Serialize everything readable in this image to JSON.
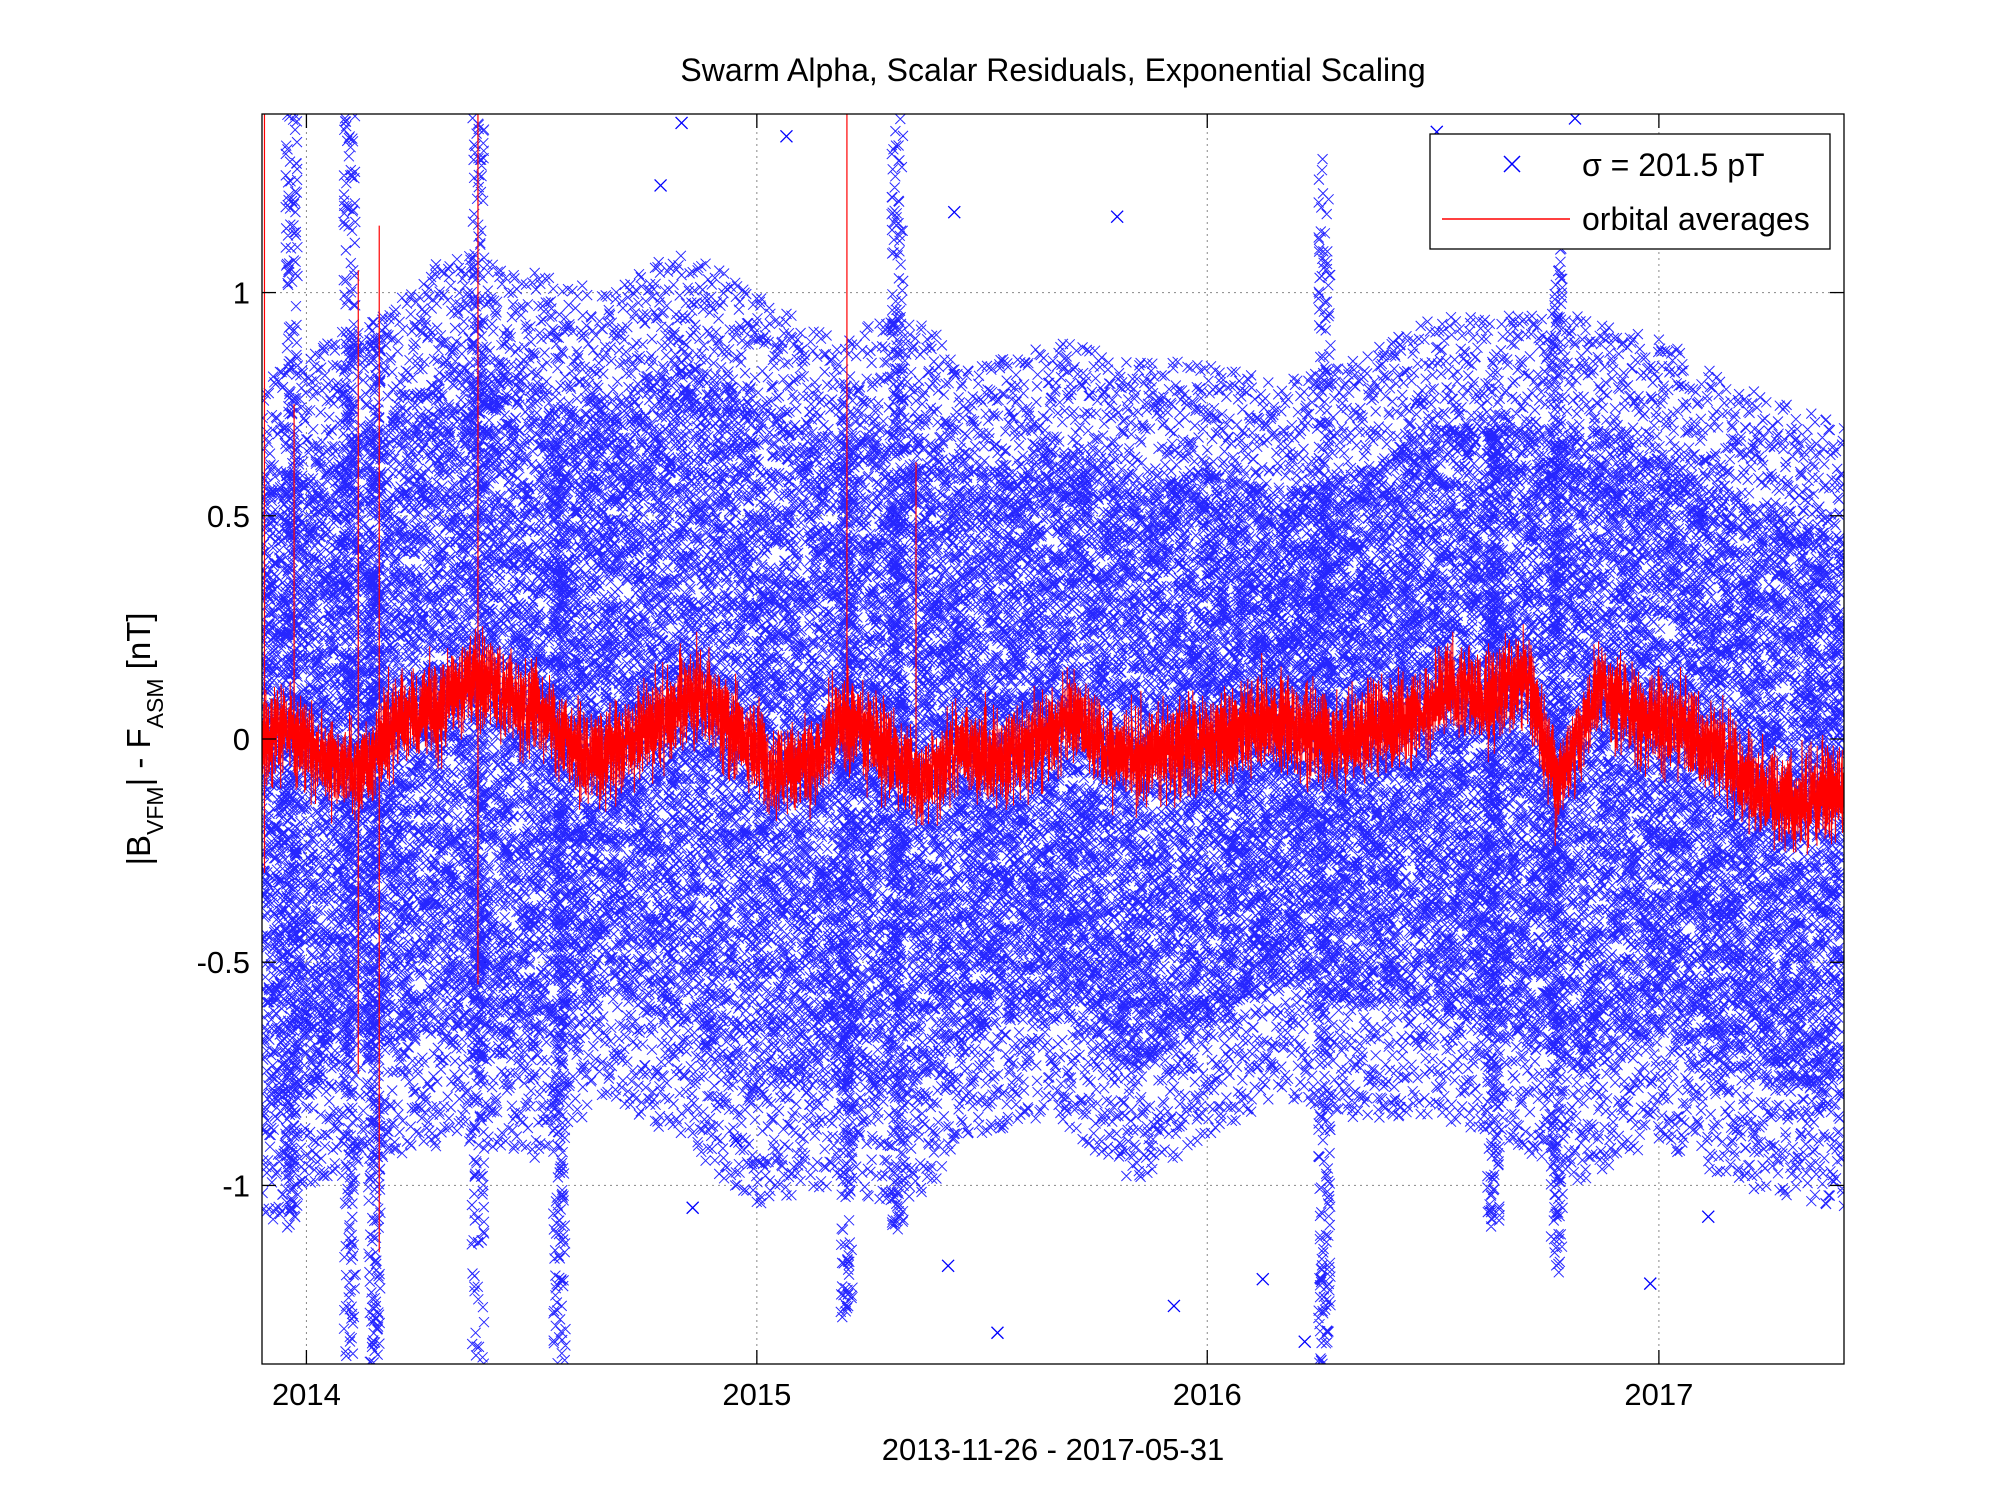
{
  "chart_data": {
    "type": "scatter",
    "title": "Swarm Alpha, Scalar Residuals, Exponential Scaling",
    "xlabel": "2013-11-26 - 2017-05-31",
    "ylabel": {
      "main_1": "|B",
      "sub_1": "VFM",
      "main_2": "| - F",
      "sub_2": "ASM",
      "main_3": " [nT]"
    },
    "x_range": [
      "2013-11-26",
      "2017-05-31"
    ],
    "ylim": [
      -1.4,
      1.4
    ],
    "x_ticks": [
      {
        "date": "2014-01-01",
        "label": "2014"
      },
      {
        "date": "2015-01-01",
        "label": "2015"
      },
      {
        "date": "2016-01-01",
        "label": "2016"
      },
      {
        "date": "2017-01-01",
        "label": "2017"
      }
    ],
    "y_ticks": [
      {
        "value": -1,
        "label": "-1"
      },
      {
        "value": -0.5,
        "label": "-0.5"
      },
      {
        "value": 0,
        "label": "0"
      },
      {
        "value": 0.5,
        "label": "0.5"
      },
      {
        "value": 1,
        "label": "1"
      }
    ],
    "grid": true,
    "legend_position": "top-right",
    "series": [
      {
        "name": "σ = 201.5 pT",
        "kind": "scatter",
        "marker": "x",
        "color": "#0000ff",
        "envelope": [
          {
            "x": "2013-11-26",
            "upper": 0.55,
            "lower": -0.85
          },
          {
            "x": "2014-01-15",
            "upper": 0.65,
            "lower": -0.75
          },
          {
            "x": "2014-03-01",
            "upper": 0.7,
            "lower": -0.7
          },
          {
            "x": "2014-05-01",
            "upper": 0.85,
            "lower": -0.65
          },
          {
            "x": "2014-07-01",
            "upper": 0.8,
            "lower": -0.7
          },
          {
            "x": "2014-09-01",
            "upper": 0.75,
            "lower": -0.55
          },
          {
            "x": "2014-11-01",
            "upper": 0.85,
            "lower": -0.65
          },
          {
            "x": "2015-01-01",
            "upper": 0.75,
            "lower": -0.8
          },
          {
            "x": "2015-03-01",
            "upper": 0.65,
            "lower": -0.75
          },
          {
            "x": "2015-05-01",
            "upper": 0.7,
            "lower": -0.8
          },
          {
            "x": "2015-07-01",
            "upper": 0.6,
            "lower": -0.65
          },
          {
            "x": "2015-09-01",
            "upper": 0.65,
            "lower": -0.6
          },
          {
            "x": "2015-11-01",
            "upper": 0.6,
            "lower": -0.75
          },
          {
            "x": "2016-01-01",
            "upper": 0.6,
            "lower": -0.65
          },
          {
            "x": "2016-03-01",
            "upper": 0.55,
            "lower": -0.55
          },
          {
            "x": "2016-05-01",
            "upper": 0.6,
            "lower": -0.6
          },
          {
            "x": "2016-07-01",
            "upper": 0.7,
            "lower": -0.6
          },
          {
            "x": "2016-09-01",
            "upper": 0.7,
            "lower": -0.65
          },
          {
            "x": "2016-11-01",
            "upper": 0.7,
            "lower": -0.75
          },
          {
            "x": "2017-01-01",
            "upper": 0.65,
            "lower": -0.65
          },
          {
            "x": "2017-03-01",
            "upper": 0.55,
            "lower": -0.75
          },
          {
            "x": "2017-05-31",
            "upper": 0.45,
            "lower": -0.8
          }
        ],
        "spikes": [
          {
            "x": "2013-12-20",
            "upper": 1.4,
            "lower": -1.1
          },
          {
            "x": "2014-02-05",
            "upper": 1.4,
            "lower": -1.4
          },
          {
            "x": "2014-02-25",
            "upper": 0.9,
            "lower": -1.4
          },
          {
            "x": "2014-05-20",
            "upper": 1.4,
            "lower": -1.4
          },
          {
            "x": "2014-07-25",
            "upper": 0.7,
            "lower": -1.4
          },
          {
            "x": "2015-04-25",
            "upper": 1.4,
            "lower": -1.1
          },
          {
            "x": "2015-03-15",
            "upper": 0.8,
            "lower": -1.3
          },
          {
            "x": "2016-04-05",
            "upper": 1.3,
            "lower": -1.4
          },
          {
            "x": "2016-10-10",
            "upper": 1.1,
            "lower": -1.2
          },
          {
            "x": "2016-08-20",
            "upper": 0.7,
            "lower": -1.1
          }
        ],
        "outliers": [
          {
            "x": "2014-11-01",
            "y": 1.38
          },
          {
            "x": "2014-10-15",
            "y": 1.24
          },
          {
            "x": "2015-01-25",
            "y": 1.35
          },
          {
            "x": "2015-06-10",
            "y": 1.18
          },
          {
            "x": "2015-10-20",
            "y": 1.17
          },
          {
            "x": "2016-07-05",
            "y": 1.36
          },
          {
            "x": "2016-10-25",
            "y": 1.39
          },
          {
            "x": "2015-06-05",
            "y": -1.18
          },
          {
            "x": "2015-07-15",
            "y": -1.33
          },
          {
            "x": "2015-12-05",
            "y": -1.27
          },
          {
            "x": "2016-02-15",
            "y": -1.21
          },
          {
            "x": "2016-03-20",
            "y": -1.35
          },
          {
            "x": "2016-12-25",
            "y": -1.22
          },
          {
            "x": "2017-02-10",
            "y": -1.07
          },
          {
            "x": "2014-11-10",
            "y": -1.05
          },
          {
            "x": "2014-12-15",
            "y": -0.9
          }
        ]
      },
      {
        "name": "orbital averages",
        "kind": "line",
        "color": "#ff0000",
        "points": [
          {
            "x": "2013-11-26",
            "y": 0.0
          },
          {
            "x": "2013-12-20",
            "y": 0.02
          },
          {
            "x": "2014-01-15",
            "y": -0.05
          },
          {
            "x": "2014-02-15",
            "y": -0.08
          },
          {
            "x": "2014-03-15",
            "y": 0.05
          },
          {
            "x": "2014-04-15",
            "y": 0.06
          },
          {
            "x": "2014-05-15",
            "y": 0.14
          },
          {
            "x": "2014-06-15",
            "y": 0.1
          },
          {
            "x": "2014-07-15",
            "y": 0.05
          },
          {
            "x": "2014-08-15",
            "y": -0.05
          },
          {
            "x": "2014-09-15",
            "y": -0.02
          },
          {
            "x": "2014-10-15",
            "y": 0.04
          },
          {
            "x": "2014-11-15",
            "y": 0.1
          },
          {
            "x": "2014-12-15",
            "y": 0.02
          },
          {
            "x": "2015-01-15",
            "y": -0.08
          },
          {
            "x": "2015-02-15",
            "y": -0.05
          },
          {
            "x": "2015-03-15",
            "y": 0.05
          },
          {
            "x": "2015-04-15",
            "y": -0.02
          },
          {
            "x": "2015-05-15",
            "y": -0.1
          },
          {
            "x": "2015-06-15",
            "y": -0.02
          },
          {
            "x": "2015-07-15",
            "y": -0.05
          },
          {
            "x": "2015-08-15",
            "y": 0.0
          },
          {
            "x": "2015-09-15",
            "y": 0.05
          },
          {
            "x": "2015-10-15",
            "y": -0.03
          },
          {
            "x": "2015-11-15",
            "y": -0.04
          },
          {
            "x": "2015-12-15",
            "y": -0.01
          },
          {
            "x": "2016-01-15",
            "y": 0.0
          },
          {
            "x": "2016-02-15",
            "y": 0.04
          },
          {
            "x": "2016-03-15",
            "y": 0.02
          },
          {
            "x": "2016-04-15",
            "y": -0.01
          },
          {
            "x": "2016-05-15",
            "y": 0.03
          },
          {
            "x": "2016-06-15",
            "y": 0.04
          },
          {
            "x": "2016-07-15",
            "y": 0.12
          },
          {
            "x": "2016-08-15",
            "y": 0.08
          },
          {
            "x": "2016-09-15",
            "y": 0.14
          },
          {
            "x": "2016-10-10",
            "y": -0.1
          },
          {
            "x": "2016-11-15",
            "y": 0.12
          },
          {
            "x": "2016-12-15",
            "y": 0.05
          },
          {
            "x": "2017-01-15",
            "y": 0.04
          },
          {
            "x": "2017-02-15",
            "y": -0.02
          },
          {
            "x": "2017-03-15",
            "y": -0.1
          },
          {
            "x": "2017-04-15",
            "y": -0.14
          },
          {
            "x": "2017-05-31",
            "y": -0.12
          }
        ],
        "noise_amplitude": 0.09,
        "spikes": [
          {
            "x": "2013-11-28",
            "upper": 1.4,
            "lower": -0.3
          },
          {
            "x": "2013-12-22",
            "upper": 0.75,
            "lower": -0.05
          },
          {
            "x": "2014-02-12",
            "upper": 1.05,
            "lower": -0.75
          },
          {
            "x": "2014-03-01",
            "upper": 1.15,
            "lower": -1.15
          },
          {
            "x": "2014-05-20",
            "upper": 1.4,
            "lower": -0.55
          },
          {
            "x": "2015-03-15",
            "upper": 1.4,
            "lower": 0.0
          },
          {
            "x": "2015-05-10",
            "upper": 0.62,
            "lower": -0.05
          }
        ]
      }
    ]
  }
}
